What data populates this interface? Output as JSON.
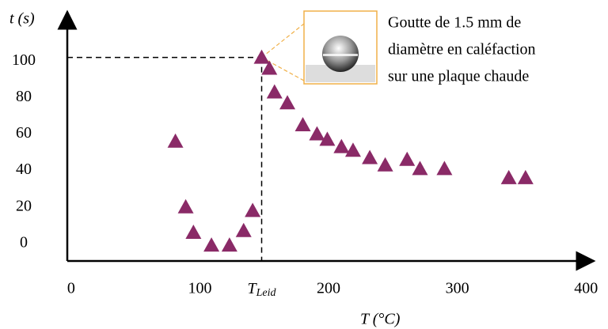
{
  "chart_data": {
    "type": "scatter",
    "x_label": "T (°C)",
    "y_label": "t (s)",
    "annotation": [
      "Goutte de 1.5 mm de",
      "diamètre en caléfaction",
      "sur une plaque chaude"
    ],
    "leidenfrost": {
      "main": "T",
      "sub": "Leid",
      "x": 148,
      "y": 102
    },
    "x": [
      81,
      89,
      95,
      109,
      123,
      134,
      141,
      148,
      154,
      158,
      168,
      180,
      191,
      199,
      210,
      219,
      232,
      244,
      261,
      271,
      290,
      340,
      353
    ],
    "series": [
      {
        "color": "#8a2a67",
        "values": [
          56,
          20,
          6,
          -1,
          -1,
          7,
          18,
          102,
          96,
          83,
          77,
          65,
          60,
          57,
          53,
          51,
          47,
          43,
          46,
          41,
          41,
          36,
          36
        ]
      }
    ],
    "xlim": [
      -3,
      406
    ],
    "ylim": [
      -9.6,
      127
    ],
    "xticks": [
      0,
      100,
      200,
      300,
      400
    ],
    "yticks": [
      0,
      20,
      40,
      60,
      80,
      100
    ]
  }
}
